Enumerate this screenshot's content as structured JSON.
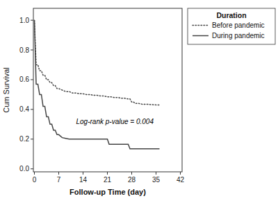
{
  "chart_data": {
    "type": "line",
    "xlabel": "Follow-up Time (day)",
    "ylabel": "Cum Survival",
    "xlim": [
      -0.3,
      42.5
    ],
    "ylim": [
      -0.02,
      1.08
    ],
    "xticks": [
      0,
      7,
      14,
      21,
      28,
      35,
      42
    ],
    "yticks": [
      {
        "value": 0.0,
        "label": "0.0"
      },
      0.2,
      0.4,
      0.6,
      0.8,
      {
        "value": 1.0,
        "label": "1.0"
      }
    ],
    "grid": false,
    "legend": "right",
    "legend_title": "Duration",
    "annotations": [
      {
        "text": "Log-rank p-value = 0.004",
        "x": 12,
        "y": 0.3
      }
    ],
    "series": [
      {
        "name": "Before pandemic",
        "color": "#444444",
        "line_style": "dotted",
        "x": [
          0,
          0.5,
          1,
          1.5,
          2,
          2.5,
          3,
          3.5,
          4,
          4.5,
          5,
          5.5,
          6,
          6.5,
          7,
          8,
          9,
          10,
          11,
          12,
          13,
          14,
          15,
          16,
          17,
          18,
          19,
          20,
          21,
          22,
          23,
          24,
          25,
          26,
          27,
          27.5,
          28,
          28.5,
          29,
          30,
          31,
          32,
          35,
          36
        ],
        "values": [
          1.0,
          0.7,
          0.7,
          0.66,
          0.66,
          0.63,
          0.63,
          0.6,
          0.6,
          0.58,
          0.58,
          0.56,
          0.56,
          0.54,
          0.54,
          0.53,
          0.52,
          0.52,
          0.51,
          0.51,
          0.505,
          0.505,
          0.5,
          0.5,
          0.495,
          0.495,
          0.49,
          0.49,
          0.485,
          0.485,
          0.48,
          0.48,
          0.475,
          0.475,
          0.47,
          0.47,
          0.45,
          0.45,
          0.44,
          0.44,
          0.435,
          0.435,
          0.43,
          0.43
        ]
      },
      {
        "name": "During pandemic",
        "color": "#444444",
        "line_style": "solid",
        "x": [
          0,
          0.5,
          1,
          1.5,
          2,
          2.5,
          3,
          3.5,
          4,
          4.5,
          5,
          5.5,
          6,
          6.5,
          7,
          8,
          9,
          10,
          11,
          12,
          13,
          14,
          21,
          21.5,
          22,
          27,
          27.5,
          28,
          35,
          36
        ],
        "values": [
          1.0,
          0.57,
          0.57,
          0.5,
          0.5,
          0.42,
          0.42,
          0.35,
          0.35,
          0.3,
          0.3,
          0.26,
          0.26,
          0.23,
          0.23,
          0.21,
          0.205,
          0.2,
          0.2,
          0.2,
          0.2,
          0.2,
          0.2,
          0.165,
          0.165,
          0.165,
          0.135,
          0.135,
          0.135,
          0.135
        ]
      }
    ]
  }
}
